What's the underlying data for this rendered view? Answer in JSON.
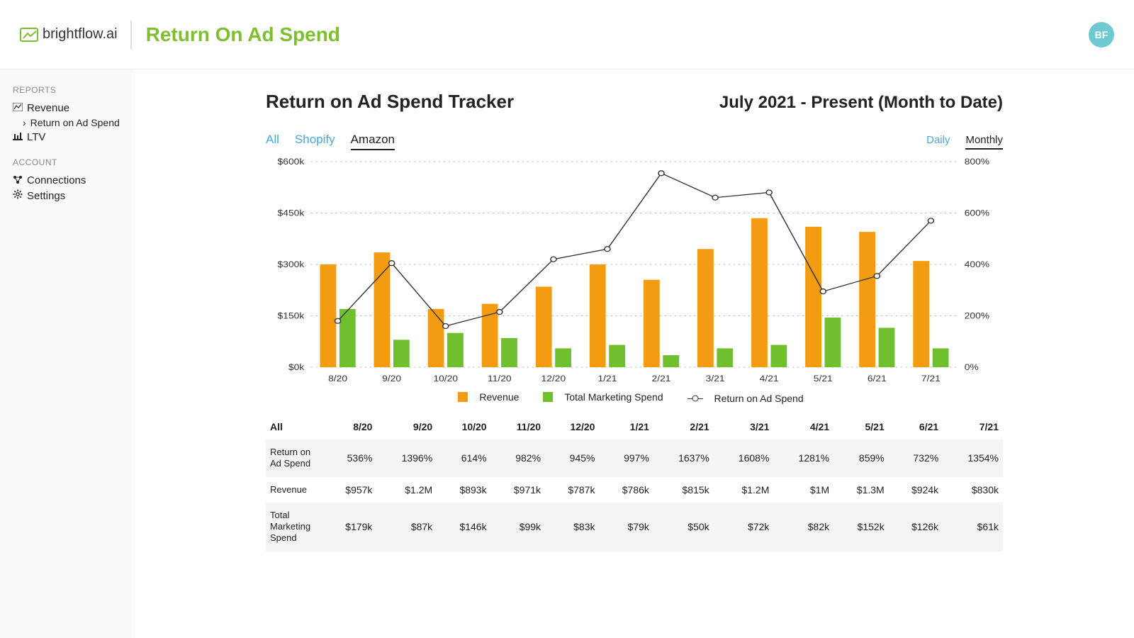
{
  "brand": {
    "name": "brightflow.ai",
    "avatar_initials": "BF",
    "accent": "#7fbf2f",
    "avatar_bg": "#6ec9d1"
  },
  "page": {
    "title": "Return On Ad Spend"
  },
  "sidebar": {
    "groups": [
      {
        "label": "REPORTS",
        "items": [
          {
            "label": "Revenue",
            "icon": "chart"
          },
          {
            "label": "Return on Ad Spend",
            "icon": "chevron",
            "sub": true,
            "active": true
          },
          {
            "label": "LTV",
            "icon": "bar"
          }
        ]
      },
      {
        "label": "ACCOUNT",
        "items": [
          {
            "label": "Connections",
            "icon": "nodes"
          },
          {
            "label": "Settings",
            "icon": "gear"
          }
        ]
      }
    ]
  },
  "card": {
    "title": "Return on Ad Spend Tracker",
    "range": "July 2021 - Present (Month to Date)",
    "source_tabs": [
      "All",
      "Shopify",
      "Amazon"
    ],
    "source_active": 2,
    "freq_tabs": [
      "Daily",
      "Monthly"
    ],
    "freq_active": 1
  },
  "chart": {
    "type": "bar+line",
    "months": [
      "8/20",
      "9/20",
      "10/20",
      "11/20",
      "12/20",
      "1/21",
      "2/21",
      "3/21",
      "4/21",
      "5/21",
      "6/21",
      "7/21"
    ],
    "revenue_k": [
      300,
      335,
      170,
      185,
      235,
      300,
      255,
      345,
      435,
      410,
      395,
      310
    ],
    "spend_k": [
      170,
      80,
      100,
      85,
      55,
      65,
      35,
      55,
      65,
      145,
      115,
      55
    ],
    "roas_pct": [
      180,
      405,
      160,
      215,
      420,
      460,
      755,
      660,
      680,
      295,
      355,
      570
    ],
    "y_left": {
      "min": 0,
      "max": 600,
      "step": 150,
      "fmt": "$#k"
    },
    "y_right": {
      "min": 0,
      "max": 800,
      "step": 200,
      "fmt": "#%"
    },
    "colors": {
      "revenue": "#f39c12",
      "spend": "#6fbf2f",
      "line": "#333333",
      "grid": "#bbbbbb",
      "bg": "#ffffff"
    },
    "bar": {
      "group_width": 0.66,
      "inner_gap": 0.06
    },
    "legend": [
      "Revenue",
      "Total Marketing Spend",
      "Return on Ad Spend"
    ]
  },
  "table": {
    "corner": "All",
    "columns": [
      "8/20",
      "9/20",
      "10/20",
      "11/20",
      "12/20",
      "1/21",
      "2/21",
      "3/21",
      "4/21",
      "5/21",
      "6/21",
      "7/21"
    ],
    "rows": [
      {
        "label": "Return on Ad Spend",
        "cells": [
          "536%",
          "1396%",
          "614%",
          "982%",
          "945%",
          "997%",
          "1637%",
          "1608%",
          "1281%",
          "859%",
          "732%",
          "1354%"
        ]
      },
      {
        "label": "Revenue",
        "cells": [
          "$957k",
          "$1.2M",
          "$893k",
          "$971k",
          "$787k",
          "$786k",
          "$815k",
          "$1.2M",
          "$1M",
          "$1.3M",
          "$924k",
          "$830k"
        ]
      },
      {
        "label": "Total Marketing Spend",
        "cells": [
          "$179k",
          "$87k",
          "$146k",
          "$99k",
          "$83k",
          "$79k",
          "$50k",
          "$72k",
          "$82k",
          "$152k",
          "$126k",
          "$61k"
        ]
      }
    ]
  }
}
